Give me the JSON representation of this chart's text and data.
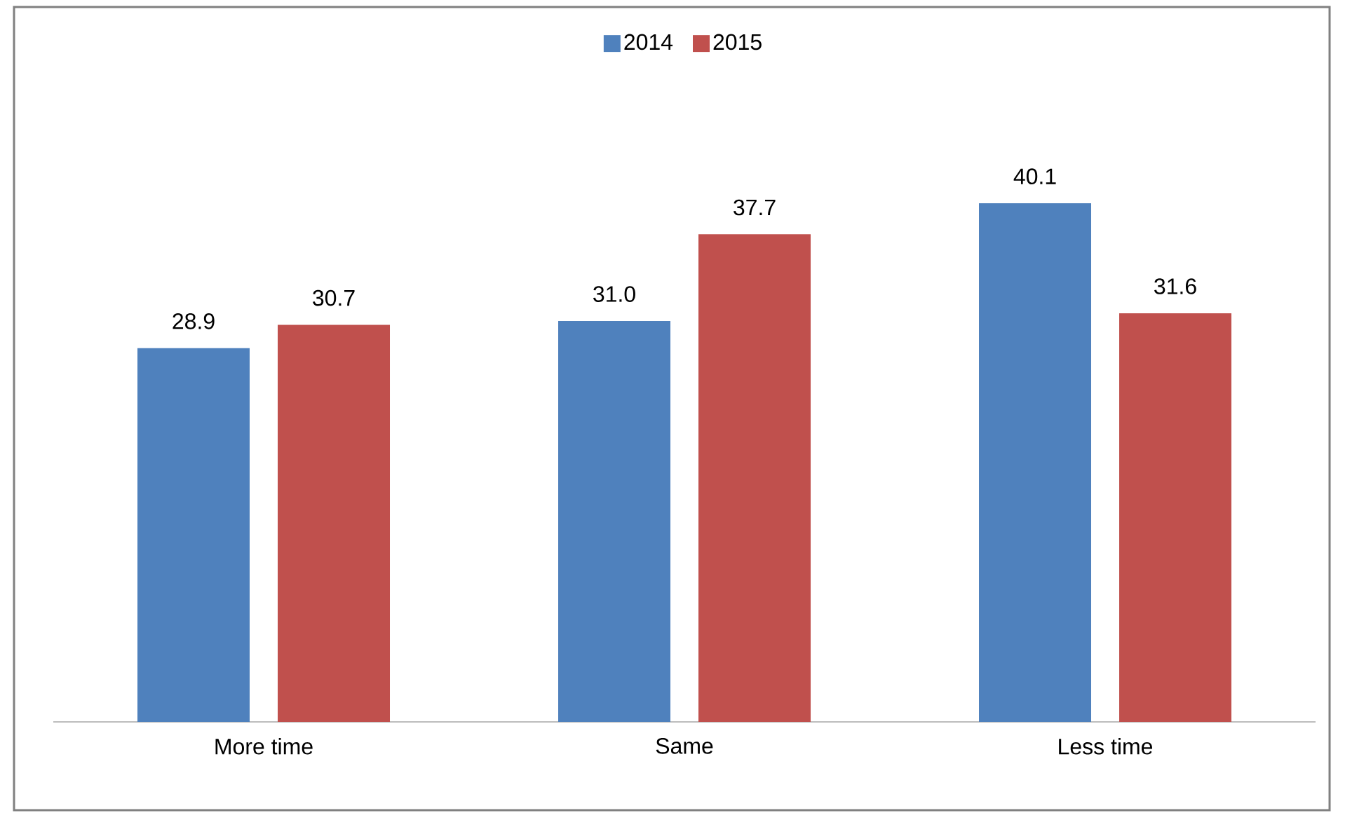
{
  "chart_data": {
    "type": "bar",
    "categories": [
      "More time",
      "Same",
      "Less time"
    ],
    "series": [
      {
        "name": "2014",
        "color": "#4f81bd",
        "values": [
          28.9,
          31.0,
          40.1
        ],
        "value_labels": [
          "28.9",
          "31.0",
          "40.1"
        ]
      },
      {
        "name": "2015",
        "color": "#c0504d",
        "values": [
          30.7,
          37.7,
          31.6
        ],
        "value_labels": [
          "30.7",
          "37.7",
          "31.6"
        ]
      }
    ],
    "legend": "top"
  }
}
